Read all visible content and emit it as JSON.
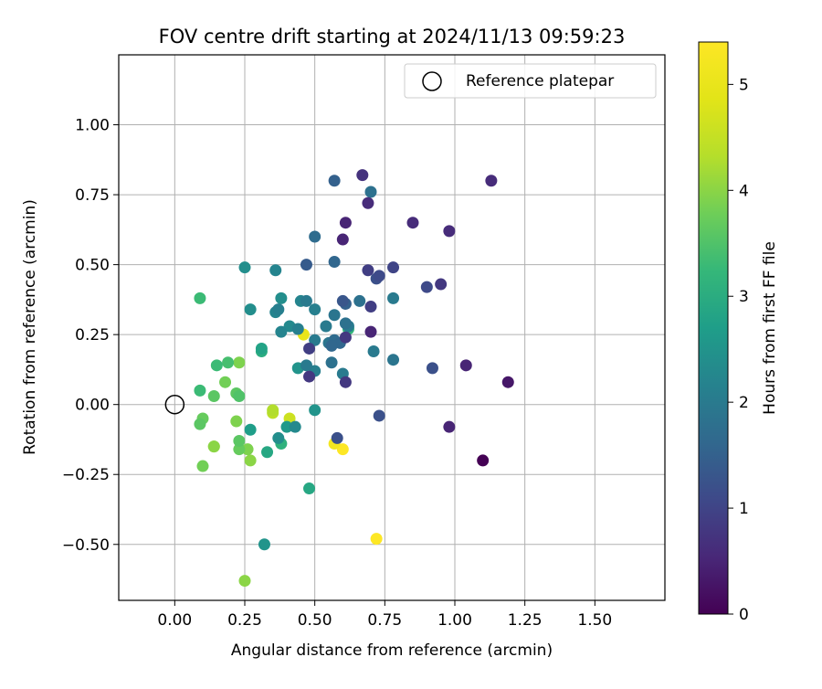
{
  "chart_data": {
    "type": "scatter",
    "title": "FOV centre drift starting at 2024/11/13 09:59:23",
    "xlabel": "Angular distance from reference (arcmin)",
    "ylabel": "Rotation from reference (arcmin)",
    "xlim": [
      -0.2,
      1.75
    ],
    "ylim": [
      -0.7,
      1.25
    ],
    "xticks": [
      0.0,
      0.25,
      0.5,
      0.75,
      1.0,
      1.25,
      1.5
    ],
    "xtick_labels": [
      "0.00",
      "0.25",
      "0.50",
      "0.75",
      "1.00",
      "1.25",
      "1.50"
    ],
    "yticks": [
      -0.5,
      -0.25,
      0.0,
      0.25,
      0.5,
      0.75,
      1.0
    ],
    "ytick_labels": [
      "−0.50",
      "−0.25",
      "0.00",
      "0.25",
      "0.50",
      "0.75",
      "1.00"
    ],
    "grid": true,
    "legend": {
      "position": "top-right",
      "entries": [
        {
          "label": "Reference platepar",
          "marker": "open-circle",
          "x": 0.0,
          "y": 0.0
        }
      ]
    },
    "colorbar": {
      "label": "Hours from first FF file",
      "colormap": "viridis",
      "range": [
        0,
        5.4
      ],
      "ticks": [
        0,
        1,
        2,
        3,
        4,
        5
      ],
      "tick_labels": [
        "0",
        "1",
        "2",
        "3",
        "4",
        "5"
      ]
    },
    "series": [
      {
        "points": [
          {
            "x": 1.1,
            "y": -0.2,
            "c": 0.0
          },
          {
            "x": 1.19,
            "y": 0.08,
            "c": 0.3
          },
          {
            "x": 0.98,
            "y": -0.08,
            "c": 0.5
          },
          {
            "x": 1.04,
            "y": 0.14,
            "c": 0.5
          },
          {
            "x": 1.13,
            "y": 0.8,
            "c": 0.6
          },
          {
            "x": 0.98,
            "y": 0.62,
            "c": 0.6
          },
          {
            "x": 0.85,
            "y": 0.65,
            "c": 0.6
          },
          {
            "x": 0.61,
            "y": 0.65,
            "c": 0.5
          },
          {
            "x": 0.6,
            "y": 0.59,
            "c": 0.5
          },
          {
            "x": 0.69,
            "y": 0.72,
            "c": 0.6
          },
          {
            "x": 0.67,
            "y": 0.82,
            "c": 0.7
          },
          {
            "x": 0.7,
            "y": 0.26,
            "c": 0.5
          },
          {
            "x": 0.95,
            "y": 0.43,
            "c": 0.8
          },
          {
            "x": 0.9,
            "y": 0.42,
            "c": 1.1
          },
          {
            "x": 0.78,
            "y": 0.49,
            "c": 1.0
          },
          {
            "x": 0.69,
            "y": 0.48,
            "c": 0.9
          },
          {
            "x": 0.73,
            "y": 0.46,
            "c": 1.1
          },
          {
            "x": 0.72,
            "y": 0.45,
            "c": 1.2
          },
          {
            "x": 0.7,
            "y": 0.35,
            "c": 0.9
          },
          {
            "x": 0.92,
            "y": 0.13,
            "c": 1.2
          },
          {
            "x": 0.73,
            "y": -0.04,
            "c": 1.2
          },
          {
            "x": 0.61,
            "y": 0.08,
            "c": 0.8
          },
          {
            "x": 0.61,
            "y": 0.24,
            "c": 0.8
          },
          {
            "x": 0.48,
            "y": 0.2,
            "c": 0.9
          },
          {
            "x": 0.48,
            "y": 0.1,
            "c": 0.8
          },
          {
            "x": 0.58,
            "y": -0.12,
            "c": 1.2
          },
          {
            "x": 0.6,
            "y": 0.37,
            "c": 1.3
          },
          {
            "x": 0.61,
            "y": 0.36,
            "c": 1.5
          },
          {
            "x": 0.66,
            "y": 0.37,
            "c": 1.8
          },
          {
            "x": 0.47,
            "y": 0.5,
            "c": 1.4
          },
          {
            "x": 0.57,
            "y": 0.51,
            "c": 1.6
          },
          {
            "x": 0.57,
            "y": 0.8,
            "c": 1.5
          },
          {
            "x": 0.7,
            "y": 0.76,
            "c": 1.8
          },
          {
            "x": 0.5,
            "y": 0.6,
            "c": 1.7
          },
          {
            "x": 0.78,
            "y": 0.38,
            "c": 2.0
          },
          {
            "x": 0.78,
            "y": 0.16,
            "c": 1.9
          },
          {
            "x": 0.71,
            "y": 0.19,
            "c": 2.0
          },
          {
            "x": 0.61,
            "y": 0.29,
            "c": 1.8
          },
          {
            "x": 0.62,
            "y": 0.28,
            "c": 2.0
          },
          {
            "x": 0.6,
            "y": 0.11,
            "c": 2.0
          },
          {
            "x": 0.56,
            "y": 0.15,
            "c": 1.8
          },
          {
            "x": 0.59,
            "y": 0.22,
            "c": 1.6
          },
          {
            "x": 0.57,
            "y": 0.23,
            "c": 1.7
          },
          {
            "x": 0.56,
            "y": 0.21,
            "c": 1.6
          },
          {
            "x": 0.54,
            "y": 0.28,
            "c": 2.0
          },
          {
            "x": 0.55,
            "y": 0.22,
            "c": 1.9
          },
          {
            "x": 0.57,
            "y": 0.32,
            "c": 1.9
          },
          {
            "x": 0.5,
            "y": 0.23,
            "c": 2.0
          },
          {
            "x": 0.5,
            "y": 0.12,
            "c": 2.1
          },
          {
            "x": 0.47,
            "y": 0.14,
            "c": 2.0
          },
          {
            "x": 0.5,
            "y": 0.34,
            "c": 2.1
          },
          {
            "x": 0.47,
            "y": 0.37,
            "c": 2.0
          },
          {
            "x": 0.45,
            "y": 0.37,
            "c": 2.2
          },
          {
            "x": 0.44,
            "y": 0.27,
            "c": 2.1
          },
          {
            "x": 0.38,
            "y": 0.26,
            "c": 2.2
          },
          {
            "x": 0.41,
            "y": 0.28,
            "c": 2.3
          },
          {
            "x": 0.38,
            "y": 0.38,
            "c": 2.4
          },
          {
            "x": 0.37,
            "y": 0.34,
            "c": 2.1
          },
          {
            "x": 0.36,
            "y": 0.33,
            "c": 2.2
          },
          {
            "x": 0.36,
            "y": 0.48,
            "c": 2.2
          },
          {
            "x": 0.25,
            "y": 0.49,
            "c": 2.4
          },
          {
            "x": 0.27,
            "y": 0.34,
            "c": 2.4
          },
          {
            "x": 0.44,
            "y": 0.13,
            "c": 2.5
          },
          {
            "x": 0.5,
            "y": -0.02,
            "c": 2.5
          },
          {
            "x": 0.43,
            "y": -0.08,
            "c": 2.3
          },
          {
            "x": 0.4,
            "y": -0.08,
            "c": 2.6
          },
          {
            "x": 0.37,
            "y": -0.12,
            "c": 2.4
          },
          {
            "x": 0.38,
            "y": -0.14,
            "c": 3.1
          },
          {
            "x": 0.33,
            "y": -0.17,
            "c": 2.9
          },
          {
            "x": 0.48,
            "y": -0.3,
            "c": 2.9
          },
          {
            "x": 0.32,
            "y": -0.5,
            "c": 2.5
          },
          {
            "x": 0.27,
            "y": -0.09,
            "c": 2.7
          },
          {
            "x": 0.31,
            "y": 0.2,
            "c": 2.8
          },
          {
            "x": 0.31,
            "y": 0.19,
            "c": 3.0
          },
          {
            "x": 0.62,
            "y": 0.27,
            "c": 3.2
          },
          {
            "x": 0.09,
            "y": 0.38,
            "c": 3.3
          },
          {
            "x": 0.09,
            "y": 0.05,
            "c": 3.3
          },
          {
            "x": 0.15,
            "y": 0.14,
            "c": 3.3
          },
          {
            "x": 0.19,
            "y": 0.15,
            "c": 3.4
          },
          {
            "x": 0.18,
            "y": 0.08,
            "c": 3.8
          },
          {
            "x": 0.22,
            "y": 0.04,
            "c": 3.6
          },
          {
            "x": 0.23,
            "y": 0.03,
            "c": 3.5
          },
          {
            "x": 0.14,
            "y": 0.03,
            "c": 3.6
          },
          {
            "x": 0.23,
            "y": 0.15,
            "c": 3.9
          },
          {
            "x": 0.1,
            "y": -0.05,
            "c": 3.7
          },
          {
            "x": 0.09,
            "y": -0.07,
            "c": 3.6
          },
          {
            "x": 0.22,
            "y": -0.06,
            "c": 3.9
          },
          {
            "x": 0.23,
            "y": -0.13,
            "c": 3.6
          },
          {
            "x": 0.23,
            "y": -0.16,
            "c": 3.7
          },
          {
            "x": 0.26,
            "y": -0.16,
            "c": 3.9
          },
          {
            "x": 0.27,
            "y": -0.2,
            "c": 4.0
          },
          {
            "x": 0.14,
            "y": -0.15,
            "c": 4.0
          },
          {
            "x": 0.14,
            "y": -0.15,
            "c": 4.2
          },
          {
            "x": 0.1,
            "y": -0.22,
            "c": 3.8
          },
          {
            "x": 0.25,
            "y": -0.63,
            "c": 4.0
          },
          {
            "x": 0.35,
            "y": -0.03,
            "c": 4.4
          },
          {
            "x": 0.35,
            "y": -0.02,
            "c": 4.3
          },
          {
            "x": 0.41,
            "y": -0.05,
            "c": 4.6
          },
          {
            "x": 0.46,
            "y": 0.25,
            "c": 5.0
          },
          {
            "x": 0.57,
            "y": -0.14,
            "c": 5.2
          },
          {
            "x": 0.6,
            "y": -0.16,
            "c": 5.4
          },
          {
            "x": 0.72,
            "y": -0.48,
            "c": 5.4
          }
        ]
      }
    ]
  }
}
